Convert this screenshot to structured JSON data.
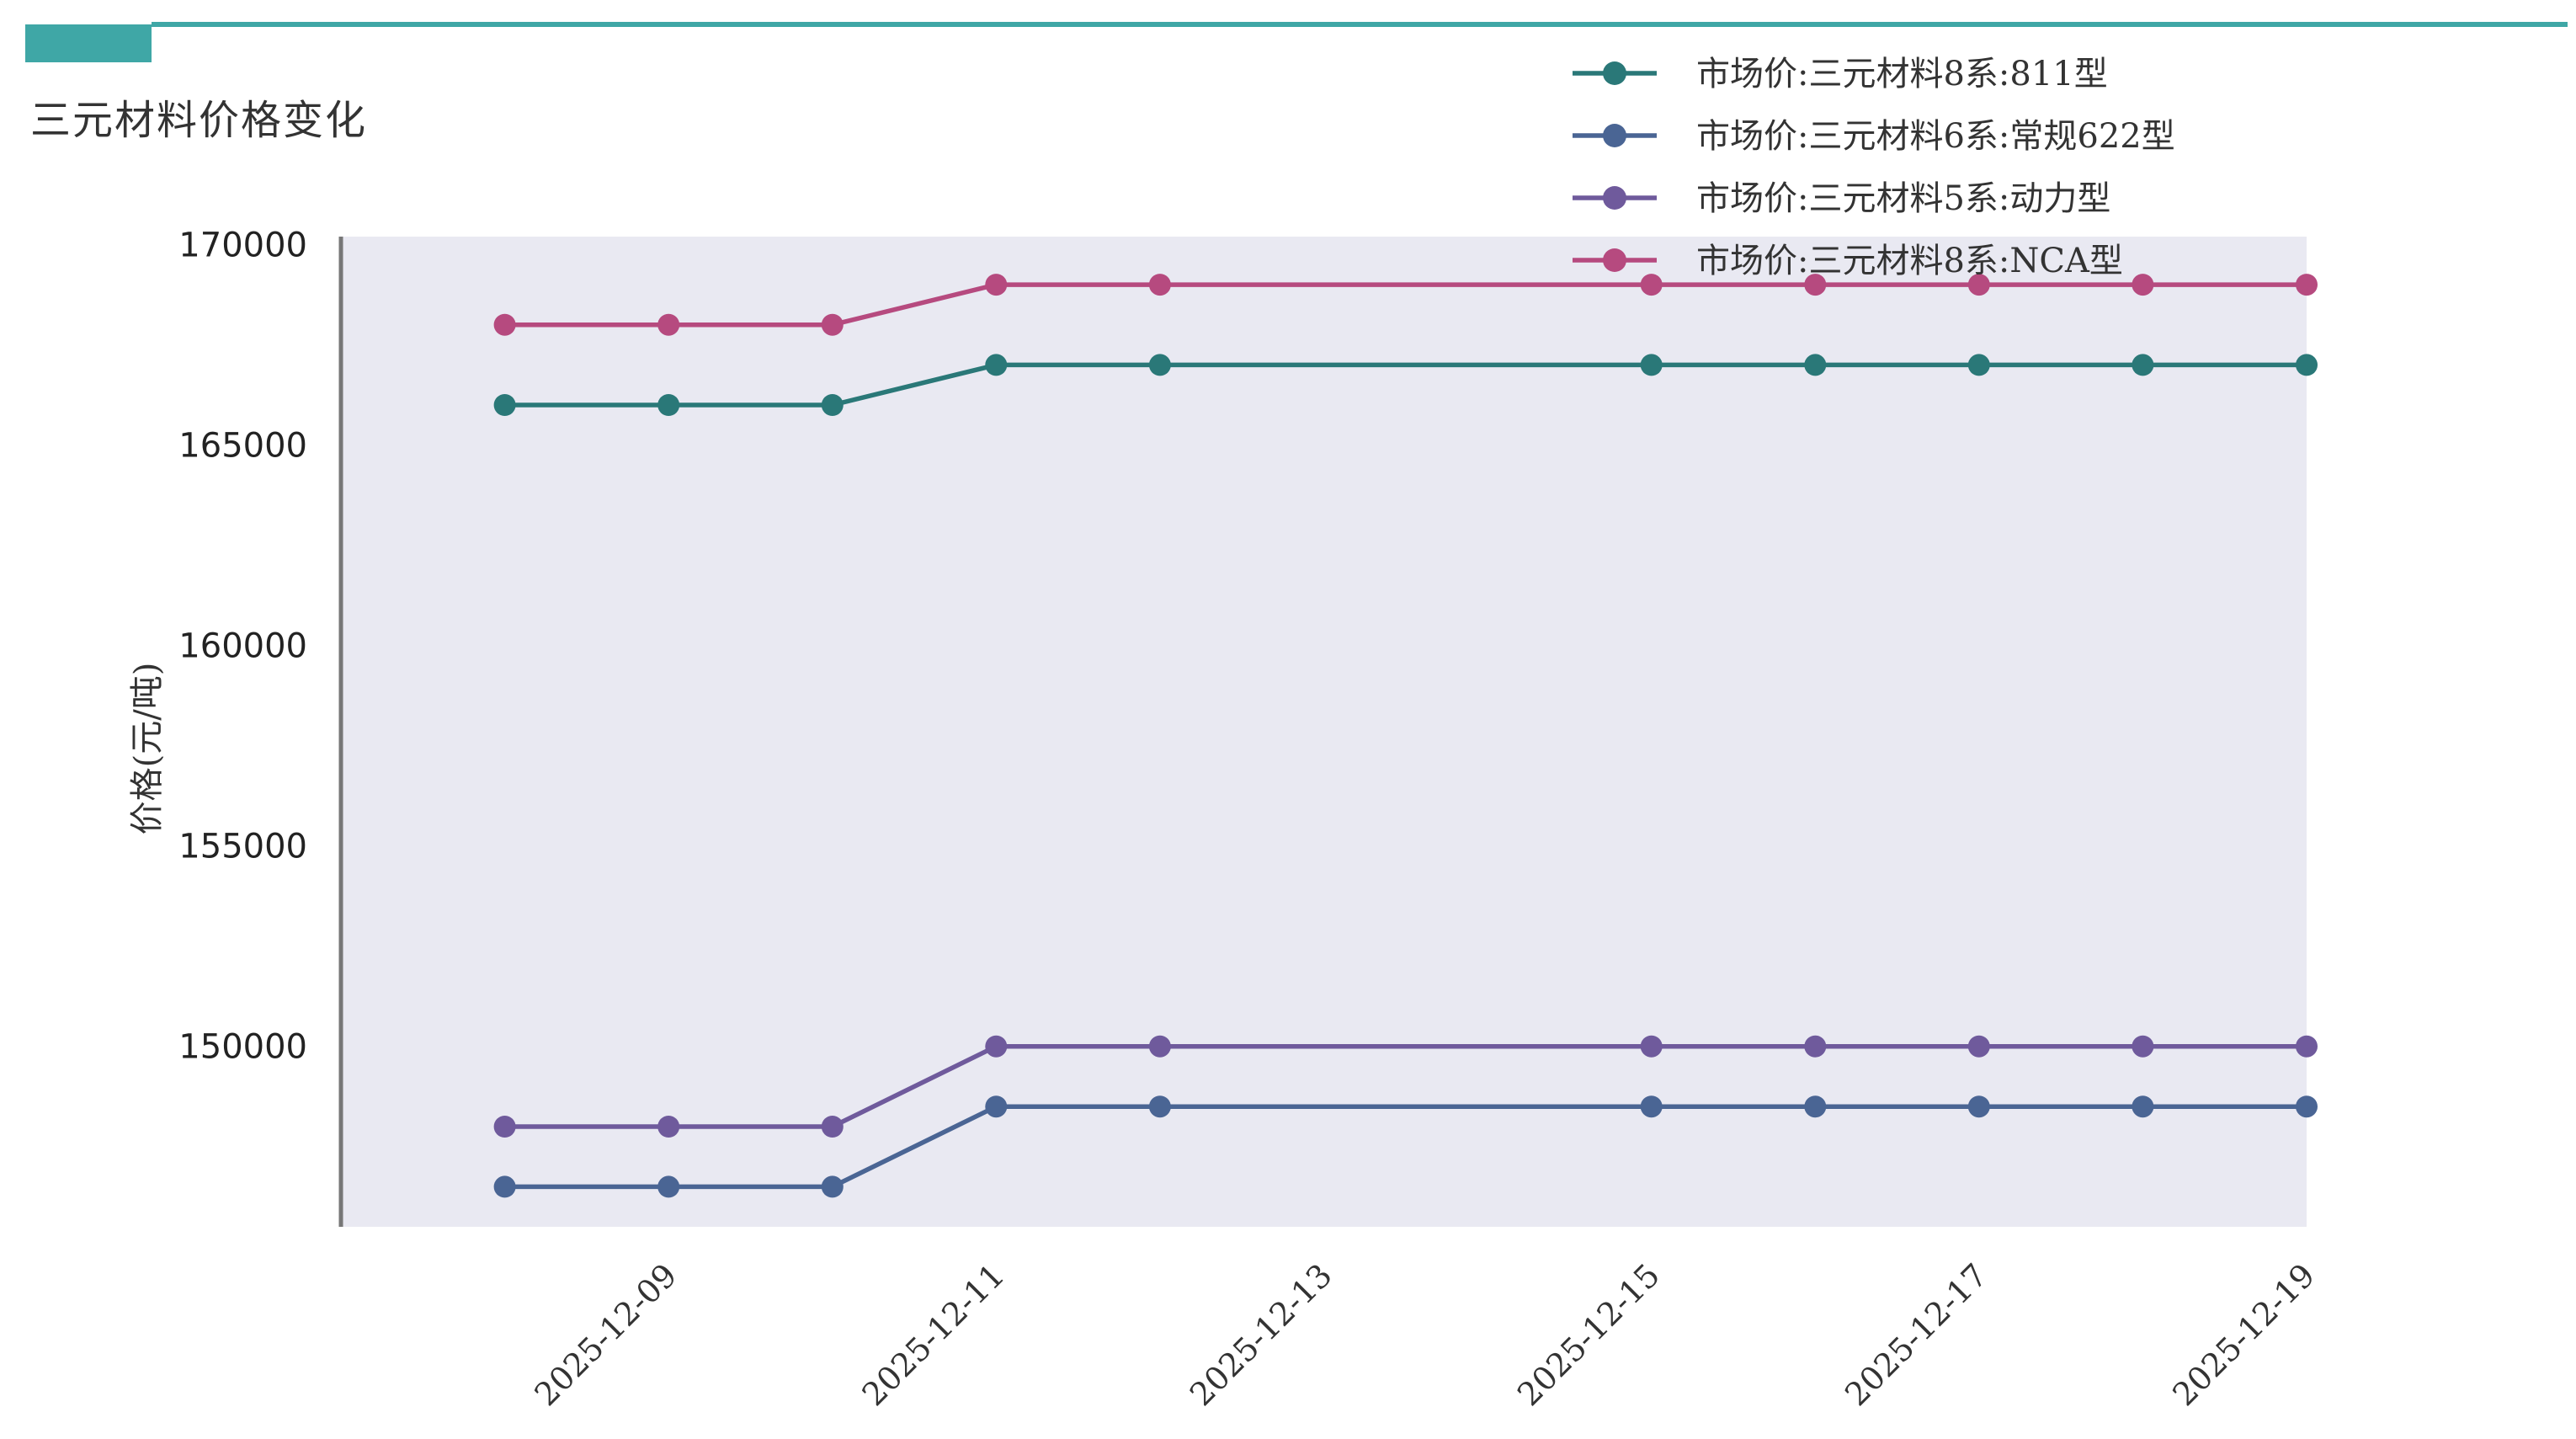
{
  "page": {
    "title": "三元材料价格变化",
    "accent_color": "#3fa7a6"
  },
  "chart_data": {
    "type": "line",
    "title": "",
    "xlabel": "",
    "ylabel": "价格(元/吨)",
    "ylim": [
      145500,
      170200
    ],
    "yticks": [
      150000,
      155000,
      160000,
      165000,
      170000
    ],
    "xticks": [
      "2025-12-09",
      "2025-12-11",
      "2025-12-13",
      "2025-12-15",
      "2025-12-17",
      "2025-12-19"
    ],
    "x": [
      "2025-12-08",
      "2025-12-09",
      "2025-12-10",
      "2025-12-11",
      "2025-12-12",
      "2025-12-15",
      "2025-12-16",
      "2025-12-17",
      "2025-12-18",
      "2025-12-19"
    ],
    "xlim": [
      "2025-12-07",
      "2025-12-19"
    ],
    "grid": false,
    "legend_position": "top-right",
    "plot_background": "#e9e9f2",
    "series": [
      {
        "name": "市场价:三元材料8系:811型",
        "color": "#2a7878",
        "values": [
          166000,
          166000,
          166000,
          167000,
          167000,
          167000,
          167000,
          167000,
          167000,
          167000
        ]
      },
      {
        "name": "市场价:三元材料6系:常规622型",
        "color": "#4a6594",
        "values": [
          146500,
          146500,
          146500,
          148500,
          148500,
          148500,
          148500,
          148500,
          148500,
          148500
        ]
      },
      {
        "name": "市场价:三元材料5系:动力型",
        "color": "#6f5a9c",
        "values": [
          148000,
          148000,
          148000,
          150000,
          150000,
          150000,
          150000,
          150000,
          150000,
          150000
        ]
      },
      {
        "name": "市场价:三元材料8系:NCA型",
        "color": "#b64a7f",
        "values": [
          168000,
          168000,
          168000,
          169000,
          169000,
          169000,
          169000,
          169000,
          169000,
          169000
        ]
      }
    ]
  }
}
